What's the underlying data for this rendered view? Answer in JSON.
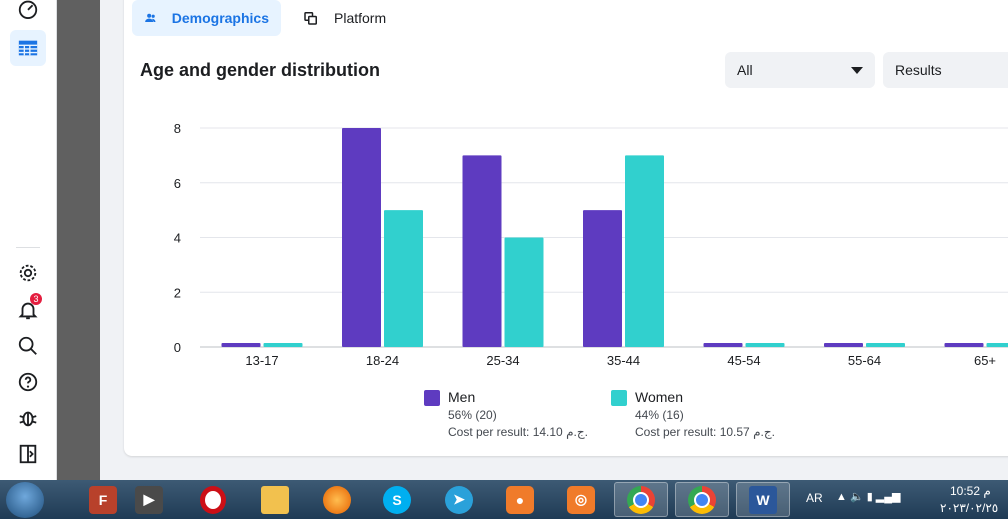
{
  "tabs": [
    {
      "label": "Demographics",
      "icon": "people-icon",
      "active": true
    },
    {
      "label": "Platform",
      "icon": "platform-icon",
      "active": false
    }
  ],
  "chart_title": "Age and gender distribution",
  "filters": {
    "audience": "All",
    "metric": "Results"
  },
  "sidebar": {
    "notification_count": "3"
  },
  "legend": [
    {
      "name": "Men",
      "share": "56% (20)",
      "cost": "Cost per result: 14.10 ج.م.",
      "color": "#5e3bc0"
    },
    {
      "name": "Women",
      "share": "44% (16)",
      "cost": "Cost per result: 10.57 ج.م.",
      "color": "#31d0ce"
    }
  ],
  "chart_data": {
    "type": "bar",
    "title": "Age and gender distribution",
    "categories": [
      "13-17",
      "18-24",
      "25-34",
      "35-44",
      "45-54",
      "55-64",
      "65+"
    ],
    "series": [
      {
        "name": "Men",
        "values": [
          0,
          8,
          7,
          5,
          0,
          0,
          0
        ],
        "color": "#5e3bc0"
      },
      {
        "name": "Women",
        "values": [
          0,
          5,
          4,
          7,
          0,
          0,
          0
        ],
        "color": "#31d0ce"
      }
    ],
    "yticks": [
      0,
      2,
      4,
      6,
      8
    ],
    "ylim": [
      0,
      8
    ],
    "grid": true,
    "legend_position": "bottom"
  },
  "taskbar": {
    "apps": [
      "filezilla-icon",
      "media-player-icon",
      "opera-icon",
      "file-explorer-icon",
      "firefox-icon",
      "skype-icon",
      "telegram-icon",
      "screen-recorder-icon",
      "screenshot-icon",
      "chrome-icon",
      "chrome-profile-icon",
      "word-icon"
    ],
    "language": "AR",
    "time": "10:52 م",
    "date": "٢٠٢٣/٠٢/٢٥"
  }
}
